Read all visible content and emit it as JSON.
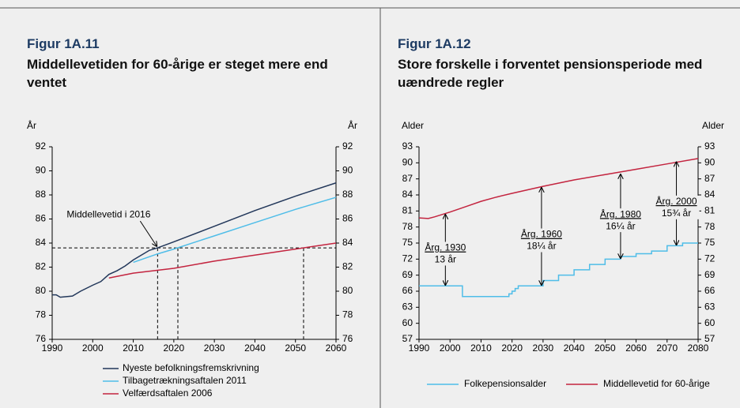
{
  "chart_data": [
    {
      "type": "line",
      "title": "Figur 1A.11",
      "subtitle": "Middellevetiden for 60-årige er steget mere end ventet",
      "ylabel": "År",
      "xlim": [
        1990,
        2060
      ],
      "xticks": [
        1990,
        2000,
        2010,
        2020,
        2030,
        2040,
        2050,
        2060
      ],
      "ylim": [
        76,
        92
      ],
      "yticks": [
        76,
        78,
        80,
        82,
        84,
        86,
        88,
        90,
        92
      ],
      "series": [
        {
          "name": "Nyeste befolkningsfremskrivning",
          "color": "#22375a",
          "x": [
            1990,
            1991,
            1992,
            1995,
            1997,
            2000,
            2002,
            2004,
            2006,
            2008,
            2010,
            2012,
            2014,
            2016,
            2020,
            2030,
            2040,
            2050,
            2060
          ],
          "values": [
            79.7,
            79.7,
            79.5,
            79.6,
            80.0,
            80.5,
            80.8,
            81.4,
            81.7,
            82.1,
            82.6,
            83.0,
            83.4,
            83.6,
            84.1,
            85.4,
            86.7,
            87.9,
            89.0
          ]
        },
        {
          "name": "Tilbagetrækningsaftalen 2011",
          "color": "#4fbde8",
          "x": [
            2010,
            2016,
            2020,
            2030,
            2040,
            2050,
            2060
          ],
          "values": [
            82.4,
            83.1,
            83.5,
            84.6,
            85.7,
            86.8,
            87.8
          ]
        },
        {
          "name": "Velfærdsaftalen 2006",
          "color": "#c3243f",
          "x": [
            2004,
            2010,
            2020,
            2030,
            2040,
            2050,
            2060
          ],
          "values": [
            81.1,
            81.5,
            81.9,
            82.5,
            83.0,
            83.5,
            84.0
          ]
        }
      ],
      "hlines": [
        83.6
      ],
      "vlines": [
        2016,
        2021,
        2052
      ],
      "annotation": {
        "text": "Middellevetid i 2016",
        "x": 2016,
        "y": 83.6
      }
    },
    {
      "type": "line",
      "title": "Figur 1A.12",
      "subtitle": "Store forskelle i forventet pensionsperiode med uændrede regler",
      "ylabel": "Alder",
      "xlim": [
        1990,
        2080
      ],
      "xticks": [
        1990,
        2000,
        2010,
        2020,
        2030,
        2040,
        2050,
        2060,
        2070,
        2080
      ],
      "ylim": [
        57,
        93
      ],
      "yticks": [
        57,
        60,
        63,
        66,
        69,
        72,
        75,
        78,
        81,
        84,
        87,
        90,
        93
      ],
      "series": [
        {
          "name": "Folkepensionsalder",
          "color": "#4fbde8",
          "step": "post",
          "x": [
            1990,
            2004,
            2019,
            2020,
            2021,
            2022,
            2030,
            2035,
            2040,
            2045,
            2050,
            2055,
            2060,
            2065,
            2070,
            2075,
            2080
          ],
          "values": [
            67,
            65,
            65.5,
            66,
            66.5,
            67,
            68,
            69,
            70,
            71,
            72,
            72.5,
            73,
            73.5,
            74.5,
            75,
            75
          ]
        },
        {
          "name": "Middellevetid for 60-årige",
          "color": "#c3243f",
          "x": [
            1990,
            1993,
            1995,
            2000,
            2005,
            2010,
            2015,
            2020,
            2030,
            2040,
            2050,
            2060,
            2070,
            2080
          ],
          "values": [
            79.7,
            79.6,
            79.9,
            80.8,
            81.8,
            82.8,
            83.6,
            84.3,
            85.6,
            86.8,
            87.8,
            88.8,
            89.8,
            90.8
          ]
        }
      ],
      "arrows": [
        {
          "label": "Årg. 1930",
          "text": "13 år",
          "x": 1998.5,
          "y_from": 67,
          "y_to": 80.5
        },
        {
          "label": "Årg. 1960",
          "text": "18¼ år",
          "x": 2029.5,
          "y_from": 67,
          "y_to": 85.5
        },
        {
          "label": "Årg. 1980",
          "text": "16¼ år",
          "x": 2055,
          "y_from": 72,
          "y_to": 88
        },
        {
          "label": "Årg. 2000",
          "text": "15¾ år",
          "x": 2073,
          "y_from": 74.5,
          "y_to": 90.3
        }
      ]
    }
  ]
}
